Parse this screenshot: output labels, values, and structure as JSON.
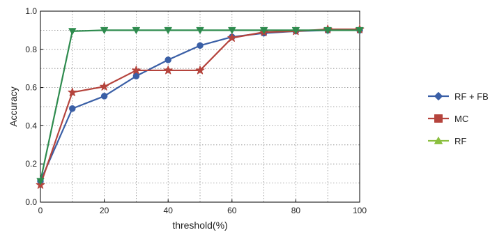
{
  "chart_data": {
    "type": "line",
    "xlabel": "threshold(%)",
    "ylabel": "Accuracy",
    "xlim": [
      0,
      100
    ],
    "ylim": [
      0.0,
      1.0
    ],
    "xticks": [
      0,
      20,
      40,
      60,
      80,
      100
    ],
    "yticks": [
      0.0,
      0.2,
      0.4,
      0.6,
      0.8,
      1.0
    ],
    "ytick_labels": [
      "0.0",
      "0.2",
      "0.4",
      "0.6",
      "0.8",
      "1.0"
    ],
    "grid": true,
    "legend_position": "right",
    "x": [
      0,
      10,
      20,
      30,
      40,
      50,
      60,
      70,
      80,
      90,
      100
    ],
    "series": [
      {
        "name": "RF + FB",
        "color": "#3a5fa6",
        "marker": "circle",
        "legend_marker": "diamond",
        "values": [
          0.11,
          0.49,
          0.555,
          0.66,
          0.745,
          0.82,
          0.865,
          0.885,
          0.895,
          0.9,
          0.9
        ]
      },
      {
        "name": "MC",
        "color": "#b5443d",
        "marker": "star",
        "legend_marker": "square",
        "values": [
          0.09,
          0.575,
          0.605,
          0.69,
          0.69,
          0.69,
          0.86,
          0.89,
          0.895,
          0.905,
          0.905
        ]
      },
      {
        "name": "RF",
        "color": "#2e8b4e",
        "marker": "triangle-down",
        "legend_marker": "triangle-up",
        "legend_color": "#8bbf3f",
        "values": [
          0.11,
          0.895,
          0.9,
          0.9,
          0.9,
          0.9,
          0.9,
          0.9,
          0.9,
          0.9,
          0.9
        ]
      }
    ]
  }
}
